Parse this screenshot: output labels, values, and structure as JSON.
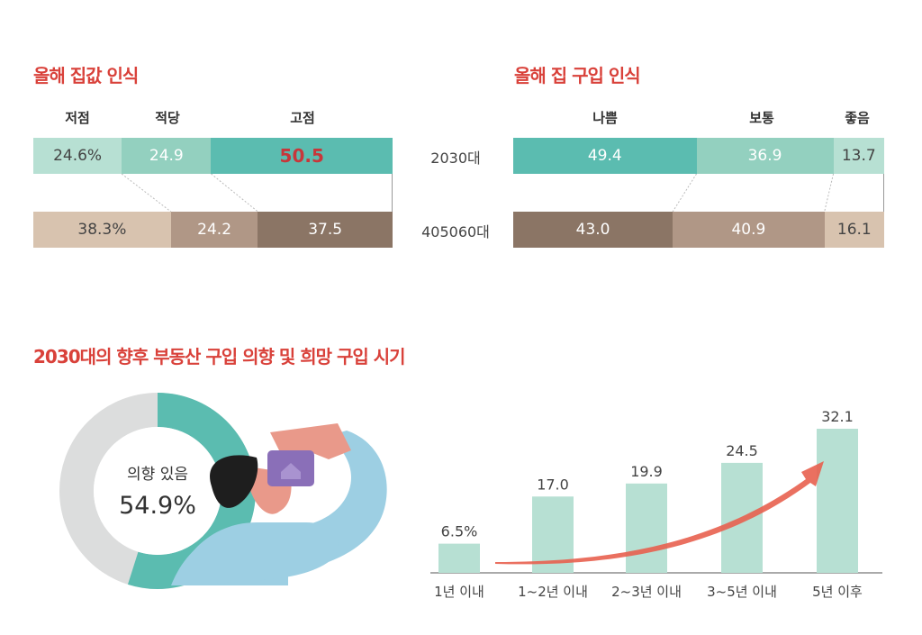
{
  "chart_data": [
    {
      "type": "bar",
      "stacked": true,
      "orientation": "horizontal",
      "title": "올해 집값 인식",
      "categories": [
        "저점",
        "적당",
        "고점"
      ],
      "series": [
        {
          "name": "2030대",
          "values": [
            24.6,
            24.9,
            50.5
          ],
          "labels": [
            "24.6%",
            "24.9",
            "50.5"
          ],
          "colors": [
            "#b7e0d3",
            "#93d0bf",
            "#5bbcb0"
          ]
        },
        {
          "name": "405060대",
          "values": [
            38.3,
            24.2,
            37.5
          ],
          "labels": [
            "38.3%",
            "24.2",
            "37.5"
          ],
          "colors": [
            "#d8c3af",
            "#b09786",
            "#8b7565"
          ]
        }
      ],
      "highlight_color": "#c8363a"
    },
    {
      "type": "bar",
      "stacked": true,
      "orientation": "horizontal",
      "title": "올해 집 구입 인식",
      "categories": [
        "나쁨",
        "보통",
        "좋음"
      ],
      "series": [
        {
          "name": "2030대",
          "values": [
            49.4,
            36.9,
            13.7
          ],
          "labels": [
            "49.4",
            "36.9",
            "13.7"
          ],
          "colors": [
            "#5bbcb0",
            "#93d0bf",
            "#b7e0d3"
          ]
        },
        {
          "name": "405060대",
          "values": [
            43.0,
            40.9,
            16.1
          ],
          "labels": [
            "43.0",
            "40.9",
            "16.1"
          ],
          "colors": [
            "#8b7565",
            "#b09786",
            "#d8c3af"
          ]
        }
      ]
    },
    {
      "type": "pie",
      "title": "2030대의 향후 부동산 구입 의향 및 희망 구입 시기",
      "label": "의향 있음",
      "value": 54.9,
      "value_label": "54.9%",
      "colors": [
        "#5bbcb0",
        "#dcdddd"
      ]
    },
    {
      "type": "bar",
      "categories": [
        "1년 이내",
        "1~2년 이내",
        "2~3년 이내",
        "3~5년 이내",
        "5년 이후"
      ],
      "values": [
        6.5,
        17.0,
        19.9,
        24.5,
        32.1
      ],
      "labels": [
        "6.5%",
        "17.0",
        "19.9",
        "24.5",
        "32.1"
      ],
      "ylim": [
        0,
        32.1
      ],
      "color": "#b7e0d3",
      "arrow_color": "#e8604f"
    }
  ]
}
